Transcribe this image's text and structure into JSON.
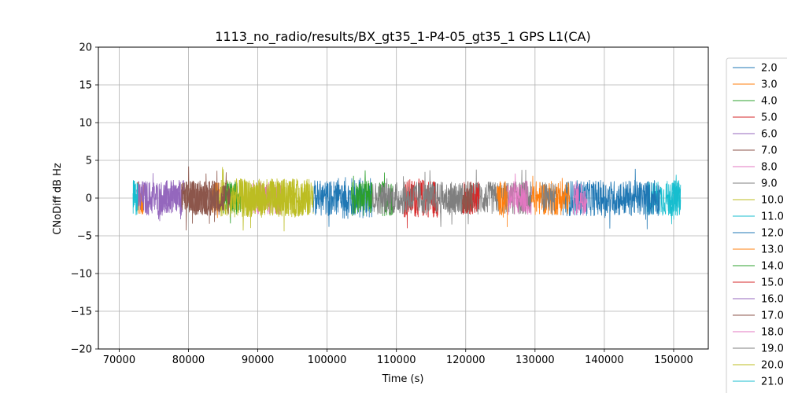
{
  "chart_data": {
    "type": "line",
    "title": "1113_no_radio/results/BX_gt35_1-P4-05_gt35_1 GPS L1(CA)",
    "xlabel": "Time (s)",
    "ylabel": "CNoDiff dB Hz",
    "xlim": [
      67000,
      155000
    ],
    "ylim": [
      -20,
      20
    ],
    "grid": true,
    "legend_placement": "right-outside",
    "x_ticks": [
      70000,
      80000,
      90000,
      100000,
      110000,
      120000,
      130000,
      140000,
      150000
    ],
    "x_tick_labels": [
      "70000",
      "80000",
      "90000",
      "100000",
      "110000",
      "120000",
      "130000",
      "140000",
      "150000"
    ],
    "y_ticks": [
      20,
      15,
      10,
      5,
      0,
      -5,
      -10,
      -15,
      -20
    ],
    "y_tick_labels": [
      "20",
      "15",
      "10",
      "5",
      "0",
      "−5",
      "−10",
      "−15",
      "−20"
    ],
    "series": [
      {
        "name": "2.0",
        "color": "#1f77b4",
        "segments": [
          [
            101000,
            106500
          ]
        ],
        "amp": 2.8
      },
      {
        "name": "3.0",
        "color": "#ff7f0e",
        "segments": [
          [
            72600,
            73500
          ],
          [
            83500,
            84500
          ]
        ],
        "amp": 2.2
      },
      {
        "name": "4.0",
        "color": "#2ca02c",
        "segments": [
          [
            103500,
            106500
          ],
          [
            107500,
            109500
          ]
        ],
        "amp": 2.4
      },
      {
        "name": "5.0",
        "color": "#d62728",
        "segments": [
          [
            111000,
            116000
          ]
        ],
        "amp": 2.6
      },
      {
        "name": "6.0",
        "color": "#9467bd",
        "segments": [
          [
            72500,
            79500
          ]
        ],
        "amp": 2.4
      },
      {
        "name": "7.0",
        "color": "#8c564b",
        "segments": [
          [
            79500,
            84000
          ]
        ],
        "amp": 2.4
      },
      {
        "name": "8.0",
        "color": "#e377c2",
        "segments": [
          [
            89000,
            93500
          ],
          [
            127500,
            129500
          ]
        ],
        "amp": 2.2
      },
      {
        "name": "9.0",
        "color": "#7f7f7f",
        "segments": [
          [
            117500,
            129500
          ]
        ],
        "amp": 2.2
      },
      {
        "name": "10.0",
        "color": "#bcbd22",
        "segments": [
          [
            84000,
            98000
          ]
        ],
        "amp": 2.5
      },
      {
        "name": "11.0",
        "color": "#17becf",
        "segments": [
          [
            72000,
            72700
          ],
          [
            146000,
            151000
          ]
        ],
        "amp": 2.4
      },
      {
        "name": "12.0",
        "color": "#1f77b4",
        "segments": [
          [
            134000,
            148000
          ],
          [
            98000,
            101000
          ]
        ],
        "amp": 2.4
      },
      {
        "name": "13.0",
        "color": "#ff7f0e",
        "segments": [
          [
            129500,
            135000
          ],
          [
            124500,
            126000
          ]
        ],
        "amp": 2.3
      },
      {
        "name": "14.0",
        "color": "#2ca02c",
        "segments": [
          [
            85000,
            87500
          ]
        ],
        "amp": 2.2
      },
      {
        "name": "15.0",
        "color": "#d62728",
        "segments": [
          [
            119500,
            122000
          ]
        ],
        "amp": 2.2
      },
      {
        "name": "16.0",
        "color": "#9467bd",
        "segments": [
          [
            76000,
            79000
          ]
        ],
        "amp": 2.0
      },
      {
        "name": "17.0",
        "color": "#8c564b",
        "segments": [
          [
            79000,
            86000
          ],
          [
            119500,
            121000
          ]
        ],
        "amp": 2.3
      },
      {
        "name": "18.0",
        "color": "#e377c2",
        "segments": [
          [
            126000,
            129000
          ],
          [
            135500,
            137500
          ]
        ],
        "amp": 2.3
      },
      {
        "name": "19.0",
        "color": "#7f7f7f",
        "segments": [
          [
            106500,
            118500
          ],
          [
            131000,
            133000
          ]
        ],
        "amp": 2.2
      },
      {
        "name": "20.0",
        "color": "#bcbd22",
        "segments": [
          [
            86000,
            97500
          ]
        ],
        "amp": 2.6
      },
      {
        "name": "21.0",
        "color": "#17becf",
        "segments": [
          [
            149000,
            151000
          ]
        ],
        "amp": 2.4
      }
    ]
  }
}
